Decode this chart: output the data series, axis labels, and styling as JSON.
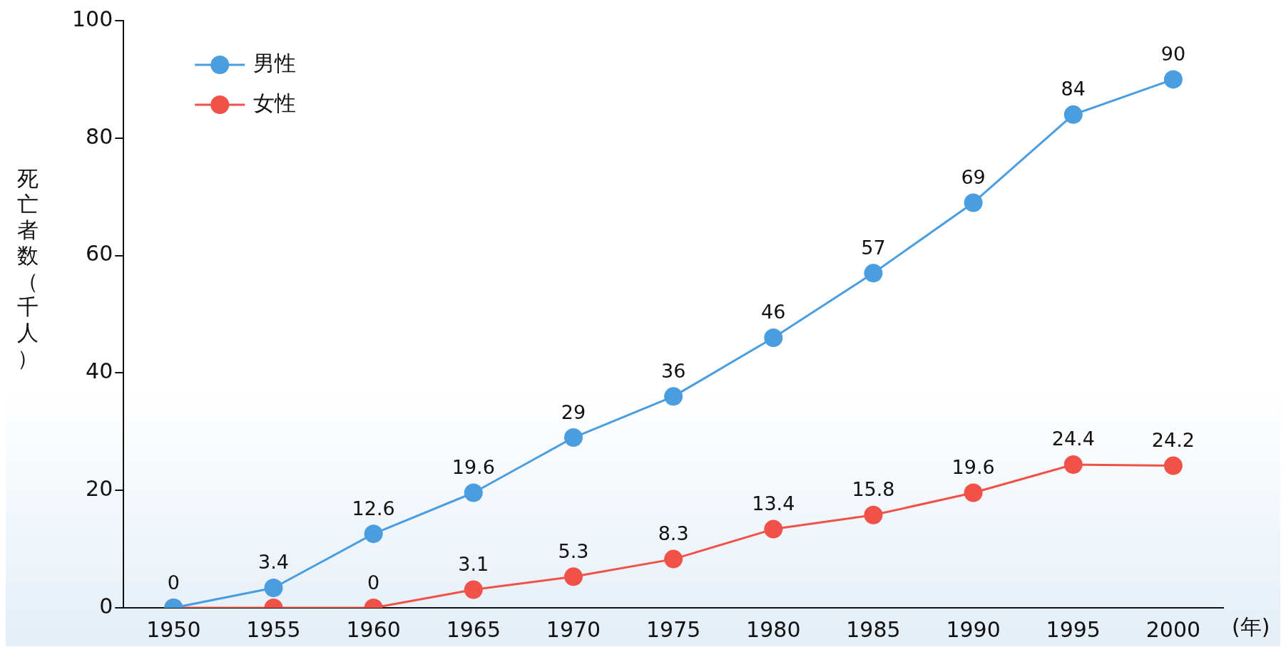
{
  "chart_data": {
    "type": "line",
    "xlabel": "(年)",
    "ylabel": "死亡者数（千人）",
    "categories": [
      "1950",
      "1955",
      "1960",
      "1965",
      "1970",
      "1975",
      "1980",
      "1985",
      "1990",
      "1995",
      "2000"
    ],
    "series": [
      {
        "name": "男性",
        "color": "#4a9ee0",
        "values": [
          0,
          3.4,
          12.6,
          19.6,
          29,
          36,
          46,
          57,
          69,
          84,
          90
        ],
        "value_labels": [
          "0",
          "3.4",
          "12.6",
          "19.6",
          "29",
          "36",
          "46",
          "57",
          "69",
          "84",
          "90"
        ]
      },
      {
        "name": "女性",
        "color": "#f0524a",
        "values": [
          0,
          0,
          0,
          3.1,
          5.3,
          8.3,
          13.4,
          15.8,
          19.6,
          24.4,
          24.2
        ],
        "value_labels": [
          null,
          null,
          "0",
          "3.1",
          "5.3",
          "8.3",
          "13.4",
          "15.8",
          "19.6",
          "24.4",
          "24.2"
        ]
      }
    ],
    "ylim": [
      0,
      100
    ],
    "yticks": [
      0,
      20,
      40,
      60,
      80,
      100
    ],
    "grid": false,
    "legend": "top left",
    "marker": "circle",
    "line_style": "solid"
  }
}
